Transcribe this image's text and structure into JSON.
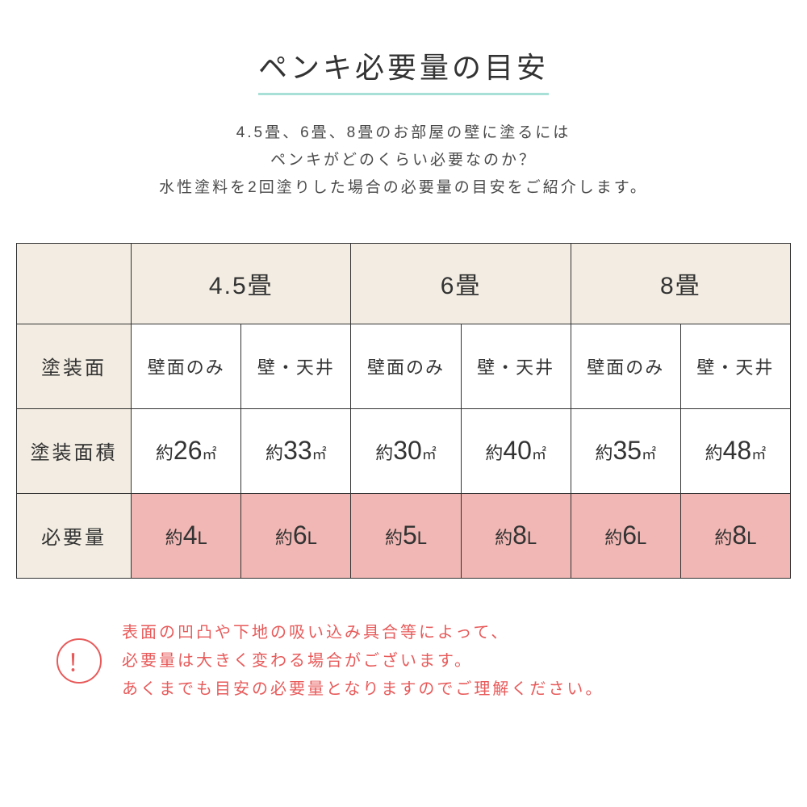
{
  "title": "ペンキ必要量の目安",
  "subtitle_lines": [
    "4.5畳、6畳、8畳のお部屋の壁に塗るには",
    "ペンキがどのくらい必要なのか？",
    "水性塗料を2回塗りした場合の必要量の目安をご紹介します。"
  ],
  "table": {
    "room_headers": [
      "4.5畳",
      "6畳",
      "8畳"
    ],
    "row_labels": [
      "塗装面",
      "塗装面積",
      "必要量"
    ],
    "surface_labels": [
      "壁面のみ",
      "壁・天井",
      "壁面のみ",
      "壁・天井",
      "壁面のみ",
      "壁・天井"
    ],
    "area_prefix": "約",
    "area_values": [
      "26",
      "33",
      "30",
      "40",
      "35",
      "48"
    ],
    "area_unit": "㎡",
    "amount_prefix": "約",
    "amount_values": [
      "4",
      "6",
      "5",
      "8",
      "6",
      "8"
    ],
    "amount_unit": "L"
  },
  "warning": {
    "icon_text": "！",
    "lines": [
      "表面の凹凸や下地の吸い込み具合等によって、",
      "必要量は大きく変わる場合がございます。",
      "あくまでも目安の必要量となりますのでご理解ください。"
    ]
  },
  "colors": {
    "header_bg": "#f2ece2",
    "highlight_bg": "#f0b7b4",
    "border": "#333333",
    "title_underline": "#a8e0d8",
    "warning": "#e85a5a",
    "text": "#333333",
    "body_bg": "#ffffff"
  }
}
